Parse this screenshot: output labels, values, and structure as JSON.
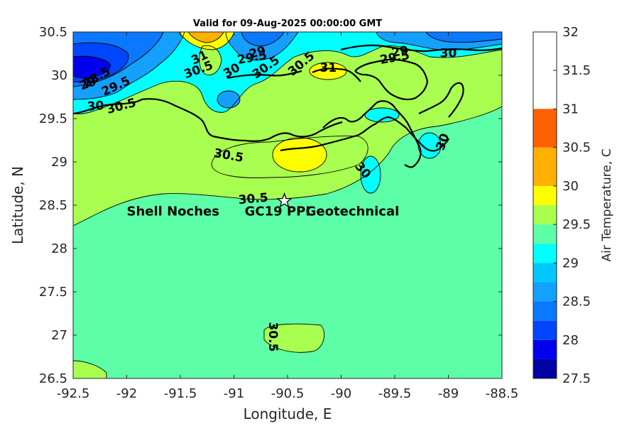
{
  "chart_data": {
    "type": "contour-map",
    "title": "Valid for 09-Aug-2025 00:00:00 GMT",
    "xlabel": "Longitude, E",
    "ylabel": "Latitude, N",
    "xlim": [
      -92.5,
      -88.5
    ],
    "ylim": [
      26.5,
      30.5
    ],
    "xticks": [
      -92.5,
      -92,
      -91.5,
      -91,
      -90.5,
      -90,
      -89.5,
      -89,
      -88.5
    ],
    "yticks": [
      26.5,
      27,
      27.5,
      28,
      28.5,
      29,
      29.5,
      30,
      30.5
    ],
    "colorbar": {
      "label": "Air Temperature, C",
      "range": [
        27.5,
        32
      ],
      "ticks": [
        27.5,
        28,
        28.5,
        29,
        29.5,
        30,
        30.5,
        31,
        31.5,
        32
      ],
      "levels": [
        27.5,
        27.75,
        28,
        28.25,
        28.5,
        28.75,
        29,
        29.25,
        29.5,
        29.75,
        30,
        30.5,
        31,
        31.25,
        31.5,
        31.75,
        32
      ],
      "colors": [
        "#0000a3",
        "#0000ee",
        "#0046ff",
        "#0a78ff",
        "#14a0ff",
        "#00c8ff",
        "#00ffff",
        "#5cffa8",
        "#a8ff50",
        "#ffff00",
        "#ffb000",
        "#ff6000"
      ]
    },
    "contour_labels": [
      {
        "text": "31",
        "lon": -91.32,
        "lat": 30.2,
        "rotate": -25
      },
      {
        "text": "30.5",
        "lon": -91.33,
        "lat": 30.06,
        "rotate": -20
      },
      {
        "text": "30",
        "lon": -91.02,
        "lat": 30.05,
        "rotate": -30
      },
      {
        "text": "29",
        "lon": -90.78,
        "lat": 30.26,
        "rotate": -15
      },
      {
        "text": "29.5",
        "lon": -90.83,
        "lat": 30.2,
        "rotate": -10
      },
      {
        "text": "30.5",
        "lon": -90.7,
        "lat": 30.09,
        "rotate": -35
      },
      {
        "text": "30.5",
        "lon": -90.37,
        "lat": 30.13,
        "rotate": -40
      },
      {
        "text": "31",
        "lon": -90.12,
        "lat": 30.08,
        "rotate": 0
      },
      {
        "text": "28.5",
        "lon": -92.28,
        "lat": 29.97,
        "rotate": -30
      },
      {
        "text": "29",
        "lon": -92.36,
        "lat": 29.9,
        "rotate": -20
      },
      {
        "text": "29.5",
        "lon": -92.1,
        "lat": 29.87,
        "rotate": -25
      },
      {
        "text": "30",
        "lon": -92.29,
        "lat": 29.64,
        "rotate": -5
      },
      {
        "text": "30.5",
        "lon": -92.05,
        "lat": 29.64,
        "rotate": -15
      },
      {
        "text": "29",
        "lon": -89.45,
        "lat": 30.27,
        "rotate": -10
      },
      {
        "text": "29.5",
        "lon": -89.5,
        "lat": 30.2,
        "rotate": -10
      },
      {
        "text": "30",
        "lon": -89.0,
        "lat": 30.25,
        "rotate": 0
      },
      {
        "text": "30",
        "lon": -89.05,
        "lat": 29.23,
        "rotate": -70
      },
      {
        "text": "30",
        "lon": -89.8,
        "lat": 28.9,
        "rotate": 50
      },
      {
        "text": "30.5",
        "lon": -91.05,
        "lat": 29.07,
        "rotate": 10
      },
      {
        "text": "30.5",
        "lon": -90.82,
        "lat": 28.57,
        "rotate": -5
      },
      {
        "text": "30.5",
        "lon": -90.64,
        "lat": 26.98,
        "rotate": 90
      }
    ],
    "marker": {
      "symbol": "star",
      "lon": -90.53,
      "lat": 28.55
    },
    "annotations": [
      {
        "text": "Shell Noches",
        "lon": -92.0,
        "lat": 28.43
      },
      {
        "text": "GC19 PPL",
        "lon": -90.9,
        "lat": 28.43
      },
      {
        "text": "Geotechnical",
        "lon": -90.33,
        "lat": 28.43
      }
    ]
  }
}
